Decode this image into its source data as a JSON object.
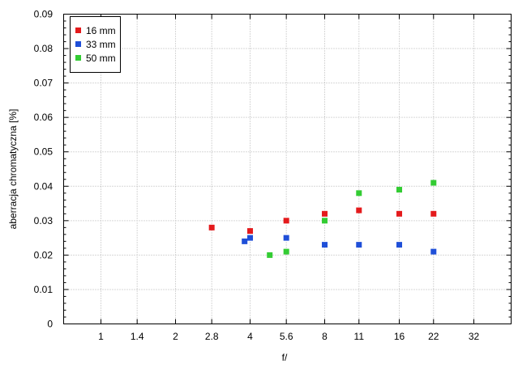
{
  "chart_data": {
    "type": "scatter",
    "title": "",
    "xlabel": "f/",
    "ylabel": "aberracja chromatyczna [%]",
    "x_scale": "log2",
    "x_ticks": [
      {
        "value": 1,
        "label": "1"
      },
      {
        "value": 1.4,
        "label": "1.4"
      },
      {
        "value": 2,
        "label": "2"
      },
      {
        "value": 2.8,
        "label": "2.8"
      },
      {
        "value": 4,
        "label": "4"
      },
      {
        "value": 5.6,
        "label": "5.6"
      },
      {
        "value": 8,
        "label": "8"
      },
      {
        "value": 11,
        "label": "11"
      },
      {
        "value": 16,
        "label": "16"
      },
      {
        "value": 22,
        "label": "22"
      },
      {
        "value": 32,
        "label": "32"
      }
    ],
    "y_ticks": [
      "0",
      "0.01",
      "0.02",
      "0.03",
      "0.04",
      "0.05",
      "0.06",
      "0.07",
      "0.08",
      "0.09"
    ],
    "ylim": [
      0,
      0.09
    ],
    "grid": true,
    "legend_position": "top-left",
    "series": [
      {
        "name": "16 mm",
        "color": "#e41a1c",
        "points": [
          {
            "x": 2.8,
            "y": 0.028
          },
          {
            "x": 4,
            "y": 0.027
          },
          {
            "x": 5.6,
            "y": 0.03
          },
          {
            "x": 8,
            "y": 0.032
          },
          {
            "x": 11,
            "y": 0.033
          },
          {
            "x": 16,
            "y": 0.032
          },
          {
            "x": 22,
            "y": 0.032
          }
        ]
      },
      {
        "name": "33 mm",
        "color": "#1f4fd8",
        "points": [
          {
            "x": 3.8,
            "y": 0.024
          },
          {
            "x": 4,
            "y": 0.025
          },
          {
            "x": 5.6,
            "y": 0.025
          },
          {
            "x": 8,
            "y": 0.023
          },
          {
            "x": 11,
            "y": 0.023
          },
          {
            "x": 16,
            "y": 0.023
          },
          {
            "x": 22,
            "y": 0.021
          }
        ]
      },
      {
        "name": "50 mm",
        "color": "#33cc33",
        "points": [
          {
            "x": 4.8,
            "y": 0.02
          },
          {
            "x": 5.6,
            "y": 0.021
          },
          {
            "x": 8,
            "y": 0.03
          },
          {
            "x": 11,
            "y": 0.038
          },
          {
            "x": 16,
            "y": 0.039
          },
          {
            "x": 22,
            "y": 0.041
          }
        ]
      }
    ]
  }
}
